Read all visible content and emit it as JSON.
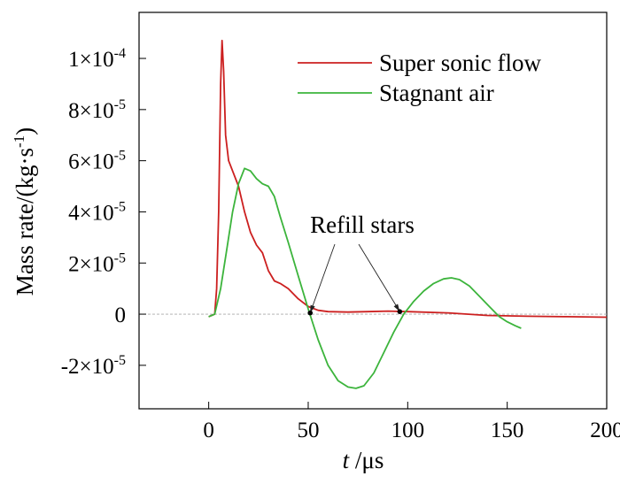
{
  "chart_data": {
    "type": "line",
    "xlabel": {
      "var": "t",
      "unit": " /μs"
    },
    "ylabel": "Mass rate/(kg·s",
    "ylabel_exp": "-1",
    "ylabel_close": ")",
    "xlim": [
      -35,
      200
    ],
    "ylim": [
      -3.7e-05,
      0.000118
    ],
    "x_ticks": [
      {
        "value": 0,
        "label": "0"
      },
      {
        "value": 50,
        "label": "50"
      },
      {
        "value": 100,
        "label": "100"
      },
      {
        "value": 150,
        "label": "150"
      },
      {
        "value": 200,
        "label": "200"
      }
    ],
    "y_ticks": [
      {
        "value": -2e-05,
        "mant": "-2×10",
        "exp": "-5"
      },
      {
        "value": 0,
        "mant": "0",
        "exp": ""
      },
      {
        "value": 2e-05,
        "mant": "2×10",
        "exp": "-5"
      },
      {
        "value": 4e-05,
        "mant": "4×10",
        "exp": "-5"
      },
      {
        "value": 6e-05,
        "mant": "6×10",
        "exp": "-5"
      },
      {
        "value": 8e-05,
        "mant": "8×10",
        "exp": "-5"
      },
      {
        "value": 0.0001,
        "mant": "1×10",
        "exp": "-4"
      }
    ],
    "zero_line": true,
    "legend": {
      "placement": "top-right"
    },
    "series": [
      {
        "name": "Super sonic flow",
        "color": "#cc1f1f",
        "points": [
          [
            0,
            -1e-06
          ],
          [
            3,
            0
          ],
          [
            4,
            1e-05
          ],
          [
            5,
            4e-05
          ],
          [
            6,
            9e-05
          ],
          [
            6.7,
            0.000107
          ],
          [
            7.5,
            9.5e-05
          ],
          [
            8.5,
            7e-05
          ],
          [
            10,
            6e-05
          ],
          [
            12,
            5.6e-05
          ],
          [
            15,
            5e-05
          ],
          [
            18,
            4e-05
          ],
          [
            21,
            3.2e-05
          ],
          [
            24,
            2.7e-05
          ],
          [
            27,
            2.4e-05
          ],
          [
            30,
            1.7e-05
          ],
          [
            33,
            1.3e-05
          ],
          [
            36,
            1.2e-05
          ],
          [
            40,
            1e-05
          ],
          [
            45,
            6e-06
          ],
          [
            50,
            3e-06
          ],
          [
            55,
            1.5e-06
          ],
          [
            60,
            1e-06
          ],
          [
            70,
            8e-07
          ],
          [
            80,
            1e-06
          ],
          [
            90,
            1.2e-06
          ],
          [
            100,
            1e-06
          ],
          [
            120,
            5e-07
          ],
          [
            140,
            -5e-07
          ],
          [
            160,
            -8e-07
          ],
          [
            180,
            -1e-06
          ],
          [
            200,
            -1.2e-06
          ]
        ]
      },
      {
        "name": "Stagnant air",
        "color": "#3cb43c",
        "points": [
          [
            0,
            -1e-06
          ],
          [
            3,
            0
          ],
          [
            6,
            1e-05
          ],
          [
            9,
            2.5e-05
          ],
          [
            12,
            4e-05
          ],
          [
            15,
            5.1e-05
          ],
          [
            18,
            5.7e-05
          ],
          [
            21,
            5.6e-05
          ],
          [
            24,
            5.3e-05
          ],
          [
            27,
            5.1e-05
          ],
          [
            30,
            5e-05
          ],
          [
            33,
            4.6e-05
          ],
          [
            36,
            3.8e-05
          ],
          [
            40,
            2.8e-05
          ],
          [
            45,
            1.5e-05
          ],
          [
            50,
            2e-06
          ],
          [
            55,
            -1e-05
          ],
          [
            60,
            -2e-05
          ],
          [
            65,
            -2.6e-05
          ],
          [
            70,
            -2.85e-05
          ],
          [
            74,
            -2.9e-05
          ],
          [
            78,
            -2.8e-05
          ],
          [
            83,
            -2.3e-05
          ],
          [
            88,
            -1.5e-05
          ],
          [
            93,
            -7e-06
          ],
          [
            98,
            0
          ],
          [
            103,
            5e-06
          ],
          [
            108,
            9e-06
          ],
          [
            113,
            1.2e-05
          ],
          [
            118,
            1.38e-05
          ],
          [
            122,
            1.42e-05
          ],
          [
            126,
            1.35e-05
          ],
          [
            131,
            1.1e-05
          ],
          [
            136,
            7e-06
          ],
          [
            141,
            3e-06
          ],
          [
            146,
            -1e-06
          ],
          [
            150,
            -3e-06
          ],
          [
            154,
            -4.5e-06
          ],
          [
            157,
            -5.5e-06
          ]
        ]
      }
    ],
    "annotation": {
      "text": "Refill stars",
      "markers": [
        [
          51,
          5e-07
        ],
        [
          96,
          1e-06
        ]
      ]
    }
  }
}
